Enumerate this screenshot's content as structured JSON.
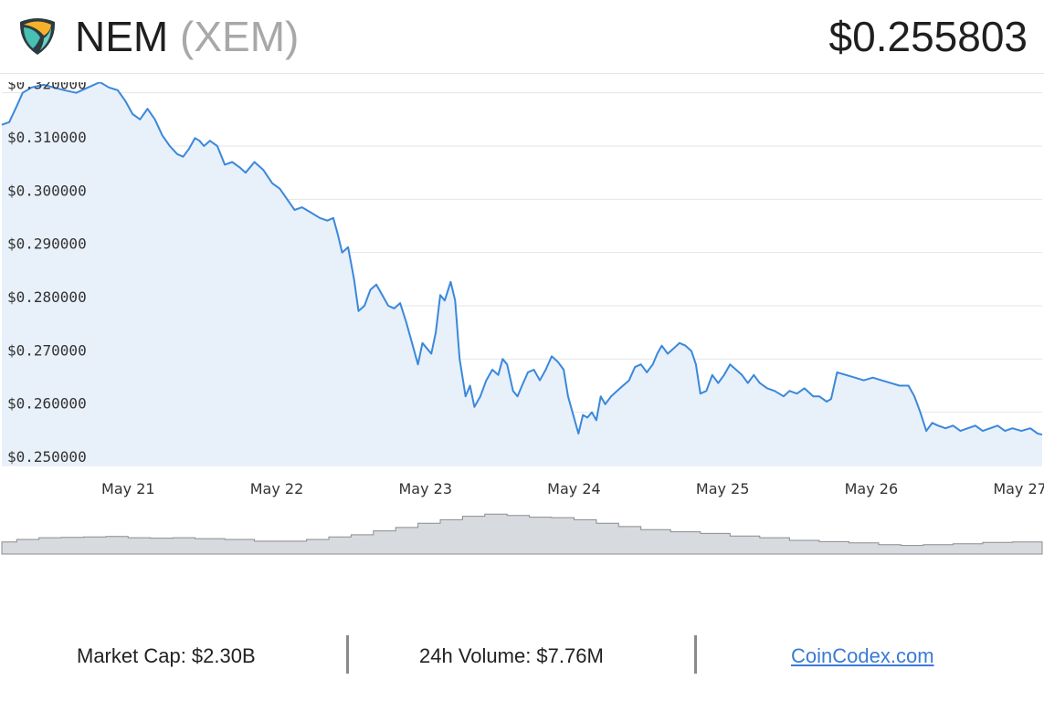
{
  "header": {
    "coin_name": "NEM",
    "coin_symbol": "(XEM)",
    "price": "$0.255803",
    "logo_icon": "nem-logo-icon"
  },
  "chart_data": {
    "type": "area",
    "title": "",
    "ylim": [
      0.25,
      0.322
    ],
    "yticks": [
      "$0.250000",
      "$0.260000",
      "$0.270000",
      "$0.280000",
      "$0.290000",
      "$0.300000",
      "$0.310000",
      "$0.320000"
    ],
    "ytick_values": [
      0.25,
      0.26,
      0.27,
      0.28,
      0.29,
      0.3,
      0.31,
      0.32
    ],
    "xticks": [
      "May 21",
      "May 22",
      "May 23",
      "May 24",
      "May 25",
      "May 26",
      "May 27"
    ],
    "xtick_values": [
      0.85,
      1.85,
      2.85,
      3.85,
      4.85,
      5.85,
      6.85
    ],
    "xlim": [
      0,
      7.0
    ],
    "grid": true,
    "line_color": "#3a88db",
    "fill_color": "#e8f0fa",
    "series": [
      {
        "values": [
          [
            0.0,
            0.314
          ],
          [
            0.05,
            0.3145
          ],
          [
            0.1,
            0.3175
          ],
          [
            0.14,
            0.32
          ],
          [
            0.2,
            0.321
          ],
          [
            0.28,
            0.3215
          ],
          [
            0.35,
            0.321
          ],
          [
            0.42,
            0.3205
          ],
          [
            0.5,
            0.32
          ],
          [
            0.58,
            0.321
          ],
          [
            0.66,
            0.322
          ],
          [
            0.72,
            0.321
          ],
          [
            0.78,
            0.3205
          ],
          [
            0.83,
            0.3185
          ],
          [
            0.88,
            0.316
          ],
          [
            0.93,
            0.315
          ],
          [
            0.98,
            0.317
          ],
          [
            1.03,
            0.315
          ],
          [
            1.08,
            0.312
          ],
          [
            1.13,
            0.31
          ],
          [
            1.18,
            0.3085
          ],
          [
            1.22,
            0.308
          ],
          [
            1.26,
            0.3095
          ],
          [
            1.3,
            0.3115
          ],
          [
            1.33,
            0.311
          ],
          [
            1.36,
            0.31
          ],
          [
            1.4,
            0.311
          ],
          [
            1.45,
            0.31
          ],
          [
            1.5,
            0.3065
          ],
          [
            1.55,
            0.307
          ],
          [
            1.6,
            0.306
          ],
          [
            1.64,
            0.305
          ],
          [
            1.7,
            0.307
          ],
          [
            1.76,
            0.3055
          ],
          [
            1.82,
            0.303
          ],
          [
            1.87,
            0.302
          ],
          [
            1.92,
            0.3
          ],
          [
            1.97,
            0.298
          ],
          [
            2.02,
            0.2985
          ],
          [
            2.08,
            0.2975
          ],
          [
            2.14,
            0.2965
          ],
          [
            2.19,
            0.296
          ],
          [
            2.23,
            0.2965
          ],
          [
            2.26,
            0.2935
          ],
          [
            2.29,
            0.29
          ],
          [
            2.33,
            0.291
          ],
          [
            2.37,
            0.285
          ],
          [
            2.4,
            0.279
          ],
          [
            2.44,
            0.28
          ],
          [
            2.48,
            0.283
          ],
          [
            2.52,
            0.284
          ],
          [
            2.56,
            0.282
          ],
          [
            2.6,
            0.28
          ],
          [
            2.64,
            0.2795
          ],
          [
            2.68,
            0.2805
          ],
          [
            2.72,
            0.277
          ],
          [
            2.76,
            0.273
          ],
          [
            2.8,
            0.269
          ],
          [
            2.83,
            0.273
          ],
          [
            2.86,
            0.272
          ],
          [
            2.89,
            0.271
          ],
          [
            2.92,
            0.275
          ],
          [
            2.95,
            0.282
          ],
          [
            2.98,
            0.281
          ],
          [
            3.02,
            0.2845
          ],
          [
            3.05,
            0.281
          ],
          [
            3.08,
            0.27
          ],
          [
            3.12,
            0.263
          ],
          [
            3.15,
            0.265
          ],
          [
            3.18,
            0.261
          ],
          [
            3.22,
            0.263
          ],
          [
            3.26,
            0.266
          ],
          [
            3.3,
            0.268
          ],
          [
            3.34,
            0.267
          ],
          [
            3.37,
            0.27
          ],
          [
            3.4,
            0.269
          ],
          [
            3.44,
            0.264
          ],
          [
            3.47,
            0.263
          ],
          [
            3.5,
            0.265
          ],
          [
            3.54,
            0.2675
          ],
          [
            3.58,
            0.268
          ],
          [
            3.62,
            0.266
          ],
          [
            3.66,
            0.268
          ],
          [
            3.7,
            0.2705
          ],
          [
            3.74,
            0.2695
          ],
          [
            3.78,
            0.268
          ],
          [
            3.81,
            0.263
          ],
          [
            3.84,
            0.26
          ],
          [
            3.88,
            0.256
          ],
          [
            3.91,
            0.2595
          ],
          [
            3.94,
            0.259
          ],
          [
            3.97,
            0.26
          ],
          [
            4.0,
            0.2585
          ],
          [
            4.03,
            0.263
          ],
          [
            4.06,
            0.2615
          ],
          [
            4.1,
            0.263
          ],
          [
            4.14,
            0.264
          ],
          [
            4.18,
            0.265
          ],
          [
            4.22,
            0.266
          ],
          [
            4.26,
            0.2685
          ],
          [
            4.3,
            0.269
          ],
          [
            4.34,
            0.2675
          ],
          [
            4.38,
            0.269
          ],
          [
            4.41,
            0.271
          ],
          [
            4.44,
            0.2725
          ],
          [
            4.48,
            0.271
          ],
          [
            4.52,
            0.272
          ],
          [
            4.56,
            0.273
          ],
          [
            4.6,
            0.2725
          ],
          [
            4.64,
            0.2715
          ],
          [
            4.67,
            0.269
          ],
          [
            4.7,
            0.2635
          ],
          [
            4.74,
            0.264
          ],
          [
            4.78,
            0.267
          ],
          [
            4.82,
            0.2655
          ],
          [
            4.86,
            0.267
          ],
          [
            4.9,
            0.269
          ],
          [
            4.94,
            0.268
          ],
          [
            4.98,
            0.267
          ],
          [
            5.02,
            0.2655
          ],
          [
            5.06,
            0.267
          ],
          [
            5.1,
            0.2655
          ],
          [
            5.15,
            0.2645
          ],
          [
            5.2,
            0.264
          ],
          [
            5.26,
            0.263
          ],
          [
            5.3,
            0.264
          ],
          [
            5.35,
            0.2635
          ],
          [
            5.4,
            0.2645
          ],
          [
            5.46,
            0.263
          ],
          [
            5.5,
            0.263
          ],
          [
            5.55,
            0.262
          ],
          [
            5.58,
            0.2625
          ],
          [
            5.62,
            0.2675
          ],
          [
            5.68,
            0.267
          ],
          [
            5.74,
            0.2665
          ],
          [
            5.8,
            0.266
          ],
          [
            5.86,
            0.2665
          ],
          [
            5.92,
            0.266
          ],
          [
            5.98,
            0.2655
          ],
          [
            6.04,
            0.265
          ],
          [
            6.1,
            0.265
          ],
          [
            6.14,
            0.263
          ],
          [
            6.18,
            0.26
          ],
          [
            6.22,
            0.2565
          ],
          [
            6.26,
            0.258
          ],
          [
            6.3,
            0.2575
          ],
          [
            6.35,
            0.257
          ],
          [
            6.4,
            0.2575
          ],
          [
            6.45,
            0.2565
          ],
          [
            6.5,
            0.257
          ],
          [
            6.55,
            0.2575
          ],
          [
            6.6,
            0.2565
          ],
          [
            6.65,
            0.257
          ],
          [
            6.7,
            0.2575
          ],
          [
            6.75,
            0.2565
          ],
          [
            6.8,
            0.257
          ],
          [
            6.86,
            0.2565
          ],
          [
            6.92,
            0.257
          ],
          [
            6.97,
            0.256
          ],
          [
            7.0,
            0.2558
          ]
        ]
      }
    ],
    "volume": {
      "fill_color": "#d7dade",
      "line_color": "#8c8c8c",
      "values": [
        [
          0.0,
          0.28
        ],
        [
          0.1,
          0.34
        ],
        [
          0.25,
          0.38
        ],
        [
          0.4,
          0.39
        ],
        [
          0.55,
          0.4
        ],
        [
          0.7,
          0.41
        ],
        [
          0.85,
          0.38
        ],
        [
          1.0,
          0.37
        ],
        [
          1.15,
          0.38
        ],
        [
          1.3,
          0.36
        ],
        [
          1.5,
          0.34
        ],
        [
          1.7,
          0.3
        ],
        [
          1.9,
          0.3
        ],
        [
          2.05,
          0.34
        ],
        [
          2.2,
          0.4
        ],
        [
          2.35,
          0.45
        ],
        [
          2.5,
          0.54
        ],
        [
          2.65,
          0.62
        ],
        [
          2.8,
          0.72
        ],
        [
          2.95,
          0.8
        ],
        [
          3.1,
          0.88
        ],
        [
          3.25,
          0.93
        ],
        [
          3.4,
          0.9
        ],
        [
          3.55,
          0.86
        ],
        [
          3.7,
          0.85
        ],
        [
          3.85,
          0.8
        ],
        [
          4.0,
          0.72
        ],
        [
          4.15,
          0.64
        ],
        [
          4.3,
          0.57
        ],
        [
          4.5,
          0.52
        ],
        [
          4.7,
          0.48
        ],
        [
          4.9,
          0.42
        ],
        [
          5.1,
          0.38
        ],
        [
          5.3,
          0.32
        ],
        [
          5.5,
          0.29
        ],
        [
          5.7,
          0.26
        ],
        [
          5.9,
          0.22
        ],
        [
          6.05,
          0.2
        ],
        [
          6.2,
          0.22
        ],
        [
          6.4,
          0.24
        ],
        [
          6.6,
          0.27
        ],
        [
          6.8,
          0.28
        ],
        [
          7.0,
          0.28
        ]
      ]
    }
  },
  "footer": {
    "market_cap": "Market Cap: $2.30B",
    "volume_24h": "24h Volume: $7.76M",
    "source_link": "CoinCodex.com"
  }
}
